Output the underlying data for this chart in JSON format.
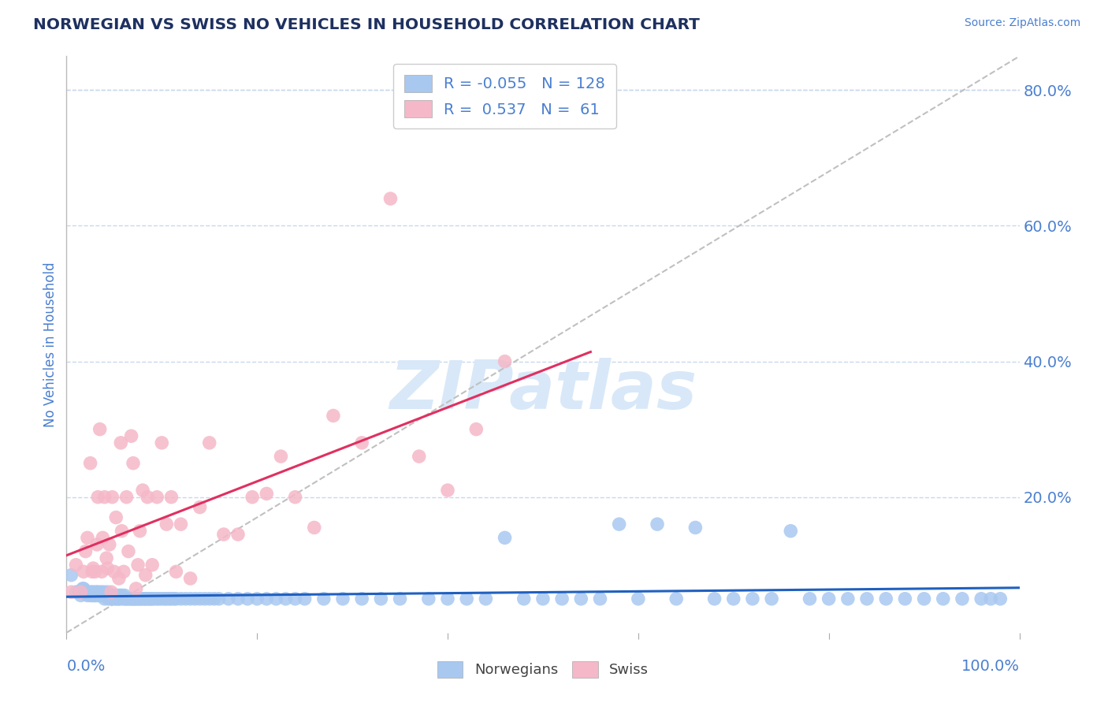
{
  "title": "NORWEGIAN VS SWISS NO VEHICLES IN HOUSEHOLD CORRELATION CHART",
  "source": "Source: ZipAtlas.com",
  "ylabel": "No Vehicles in Household",
  "norwegian_R": -0.055,
  "norwegian_N": 128,
  "swiss_R": 0.537,
  "swiss_N": 61,
  "norwegian_color": "#A8C8F0",
  "swiss_color": "#F5B8C8",
  "norwegian_trend_color": "#2060C0",
  "swiss_trend_color": "#E03060",
  "ref_line_color": "#C0C0C0",
  "grid_color": "#C8D8EE",
  "background_color": "#FFFFFF",
  "title_color": "#1E3060",
  "axis_label_color": "#4A7FD0",
  "xlim": [
    0.0,
    1.0
  ],
  "ylim": [
    0.0,
    0.85
  ],
  "ytick_positions": [
    0.2,
    0.4,
    0.6,
    0.8
  ],
  "ytick_labels": [
    "20.0%",
    "40.0%",
    "60.0%",
    "80.0%"
  ],
  "norwegian_x": [
    0.005,
    0.01,
    0.013,
    0.015,
    0.017,
    0.018,
    0.02,
    0.022,
    0.023,
    0.025,
    0.026,
    0.027,
    0.028,
    0.029,
    0.03,
    0.031,
    0.032,
    0.033,
    0.034,
    0.035,
    0.036,
    0.037,
    0.038,
    0.039,
    0.04,
    0.041,
    0.042,
    0.043,
    0.044,
    0.045,
    0.046,
    0.047,
    0.048,
    0.05,
    0.051,
    0.052,
    0.053,
    0.054,
    0.055,
    0.056,
    0.057,
    0.058,
    0.06,
    0.061,
    0.062,
    0.063,
    0.065,
    0.067,
    0.068,
    0.07,
    0.071,
    0.072,
    0.074,
    0.075,
    0.077,
    0.078,
    0.08,
    0.082,
    0.083,
    0.085,
    0.087,
    0.088,
    0.09,
    0.092,
    0.095,
    0.097,
    0.1,
    0.103,
    0.105,
    0.108,
    0.11,
    0.113,
    0.115,
    0.12,
    0.125,
    0.13,
    0.135,
    0.14,
    0.145,
    0.15,
    0.155,
    0.16,
    0.17,
    0.18,
    0.19,
    0.2,
    0.21,
    0.22,
    0.23,
    0.24,
    0.25,
    0.27,
    0.29,
    0.31,
    0.33,
    0.35,
    0.38,
    0.4,
    0.42,
    0.44,
    0.46,
    0.48,
    0.5,
    0.52,
    0.54,
    0.56,
    0.58,
    0.6,
    0.62,
    0.64,
    0.66,
    0.68,
    0.7,
    0.72,
    0.74,
    0.76,
    0.78,
    0.8,
    0.82,
    0.84,
    0.86,
    0.88,
    0.9,
    0.92,
    0.94,
    0.96,
    0.97,
    0.98
  ],
  "norwegian_y": [
    0.085,
    0.06,
    0.06,
    0.055,
    0.065,
    0.065,
    0.06,
    0.055,
    0.06,
    0.055,
    0.06,
    0.055,
    0.06,
    0.055,
    0.055,
    0.06,
    0.055,
    0.06,
    0.055,
    0.055,
    0.06,
    0.055,
    0.055,
    0.06,
    0.05,
    0.055,
    0.055,
    0.06,
    0.05,
    0.055,
    0.055,
    0.05,
    0.055,
    0.05,
    0.055,
    0.05,
    0.055,
    0.05,
    0.05,
    0.055,
    0.05,
    0.055,
    0.05,
    0.055,
    0.05,
    0.05,
    0.05,
    0.05,
    0.05,
    0.05,
    0.05,
    0.05,
    0.05,
    0.05,
    0.05,
    0.05,
    0.05,
    0.05,
    0.05,
    0.05,
    0.05,
    0.05,
    0.05,
    0.05,
    0.05,
    0.05,
    0.05,
    0.05,
    0.05,
    0.05,
    0.05,
    0.05,
    0.05,
    0.05,
    0.05,
    0.05,
    0.05,
    0.05,
    0.05,
    0.05,
    0.05,
    0.05,
    0.05,
    0.05,
    0.05,
    0.05,
    0.05,
    0.05,
    0.05,
    0.05,
    0.05,
    0.05,
    0.05,
    0.05,
    0.05,
    0.05,
    0.05,
    0.05,
    0.05,
    0.05,
    0.14,
    0.05,
    0.05,
    0.05,
    0.05,
    0.05,
    0.16,
    0.05,
    0.16,
    0.05,
    0.155,
    0.05,
    0.05,
    0.05,
    0.05,
    0.15,
    0.05,
    0.05,
    0.05,
    0.05,
    0.05,
    0.05,
    0.05,
    0.05,
    0.05,
    0.05,
    0.05,
    0.05
  ],
  "swiss_x": [
    0.005,
    0.01,
    0.015,
    0.018,
    0.02,
    0.022,
    0.025,
    0.027,
    0.028,
    0.03,
    0.032,
    0.033,
    0.035,
    0.037,
    0.038,
    0.04,
    0.042,
    0.043,
    0.045,
    0.047,
    0.048,
    0.05,
    0.052,
    0.055,
    0.057,
    0.058,
    0.06,
    0.063,
    0.065,
    0.068,
    0.07,
    0.073,
    0.075,
    0.077,
    0.08,
    0.083,
    0.085,
    0.09,
    0.095,
    0.1,
    0.105,
    0.11,
    0.115,
    0.12,
    0.13,
    0.14,
    0.15,
    0.165,
    0.18,
    0.195,
    0.21,
    0.225,
    0.24,
    0.26,
    0.28,
    0.31,
    0.34,
    0.37,
    0.4,
    0.43,
    0.46
  ],
  "swiss_y": [
    0.06,
    0.1,
    0.06,
    0.09,
    0.12,
    0.14,
    0.25,
    0.09,
    0.095,
    0.09,
    0.13,
    0.2,
    0.3,
    0.09,
    0.14,
    0.2,
    0.11,
    0.095,
    0.13,
    0.06,
    0.2,
    0.09,
    0.17,
    0.08,
    0.28,
    0.15,
    0.09,
    0.2,
    0.12,
    0.29,
    0.25,
    0.065,
    0.1,
    0.15,
    0.21,
    0.085,
    0.2,
    0.1,
    0.2,
    0.28,
    0.16,
    0.2,
    0.09,
    0.16,
    0.08,
    0.185,
    0.28,
    0.145,
    0.145,
    0.2,
    0.205,
    0.26,
    0.2,
    0.155,
    0.32,
    0.28,
    0.64,
    0.26,
    0.21,
    0.3,
    0.4
  ]
}
